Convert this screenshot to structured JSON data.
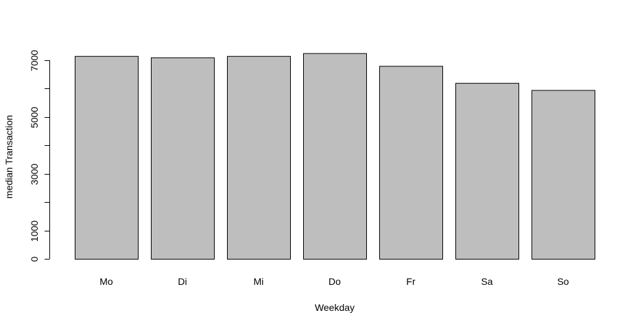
{
  "chart_data": {
    "type": "bar",
    "categories": [
      "Mo",
      "Di",
      "Mi",
      "Do",
      "Fr",
      "Sa",
      "So"
    ],
    "values": [
      7150,
      7100,
      7150,
      7250,
      6800,
      6200,
      5950
    ],
    "title": "",
    "xlabel": "Weekday",
    "ylabel": "median Transaction",
    "ylim": [
      0,
      7000
    ],
    "yticks": [
      0,
      1000,
      2000,
      3000,
      4000,
      5000,
      6000,
      7000
    ],
    "ytick_labels": [
      "0",
      "1000",
      "",
      "3000",
      "",
      "5000",
      "",
      "7000"
    ],
    "grid": false,
    "legend": "none",
    "bar_color": "#bebebe",
    "edge_color": "#000000"
  }
}
